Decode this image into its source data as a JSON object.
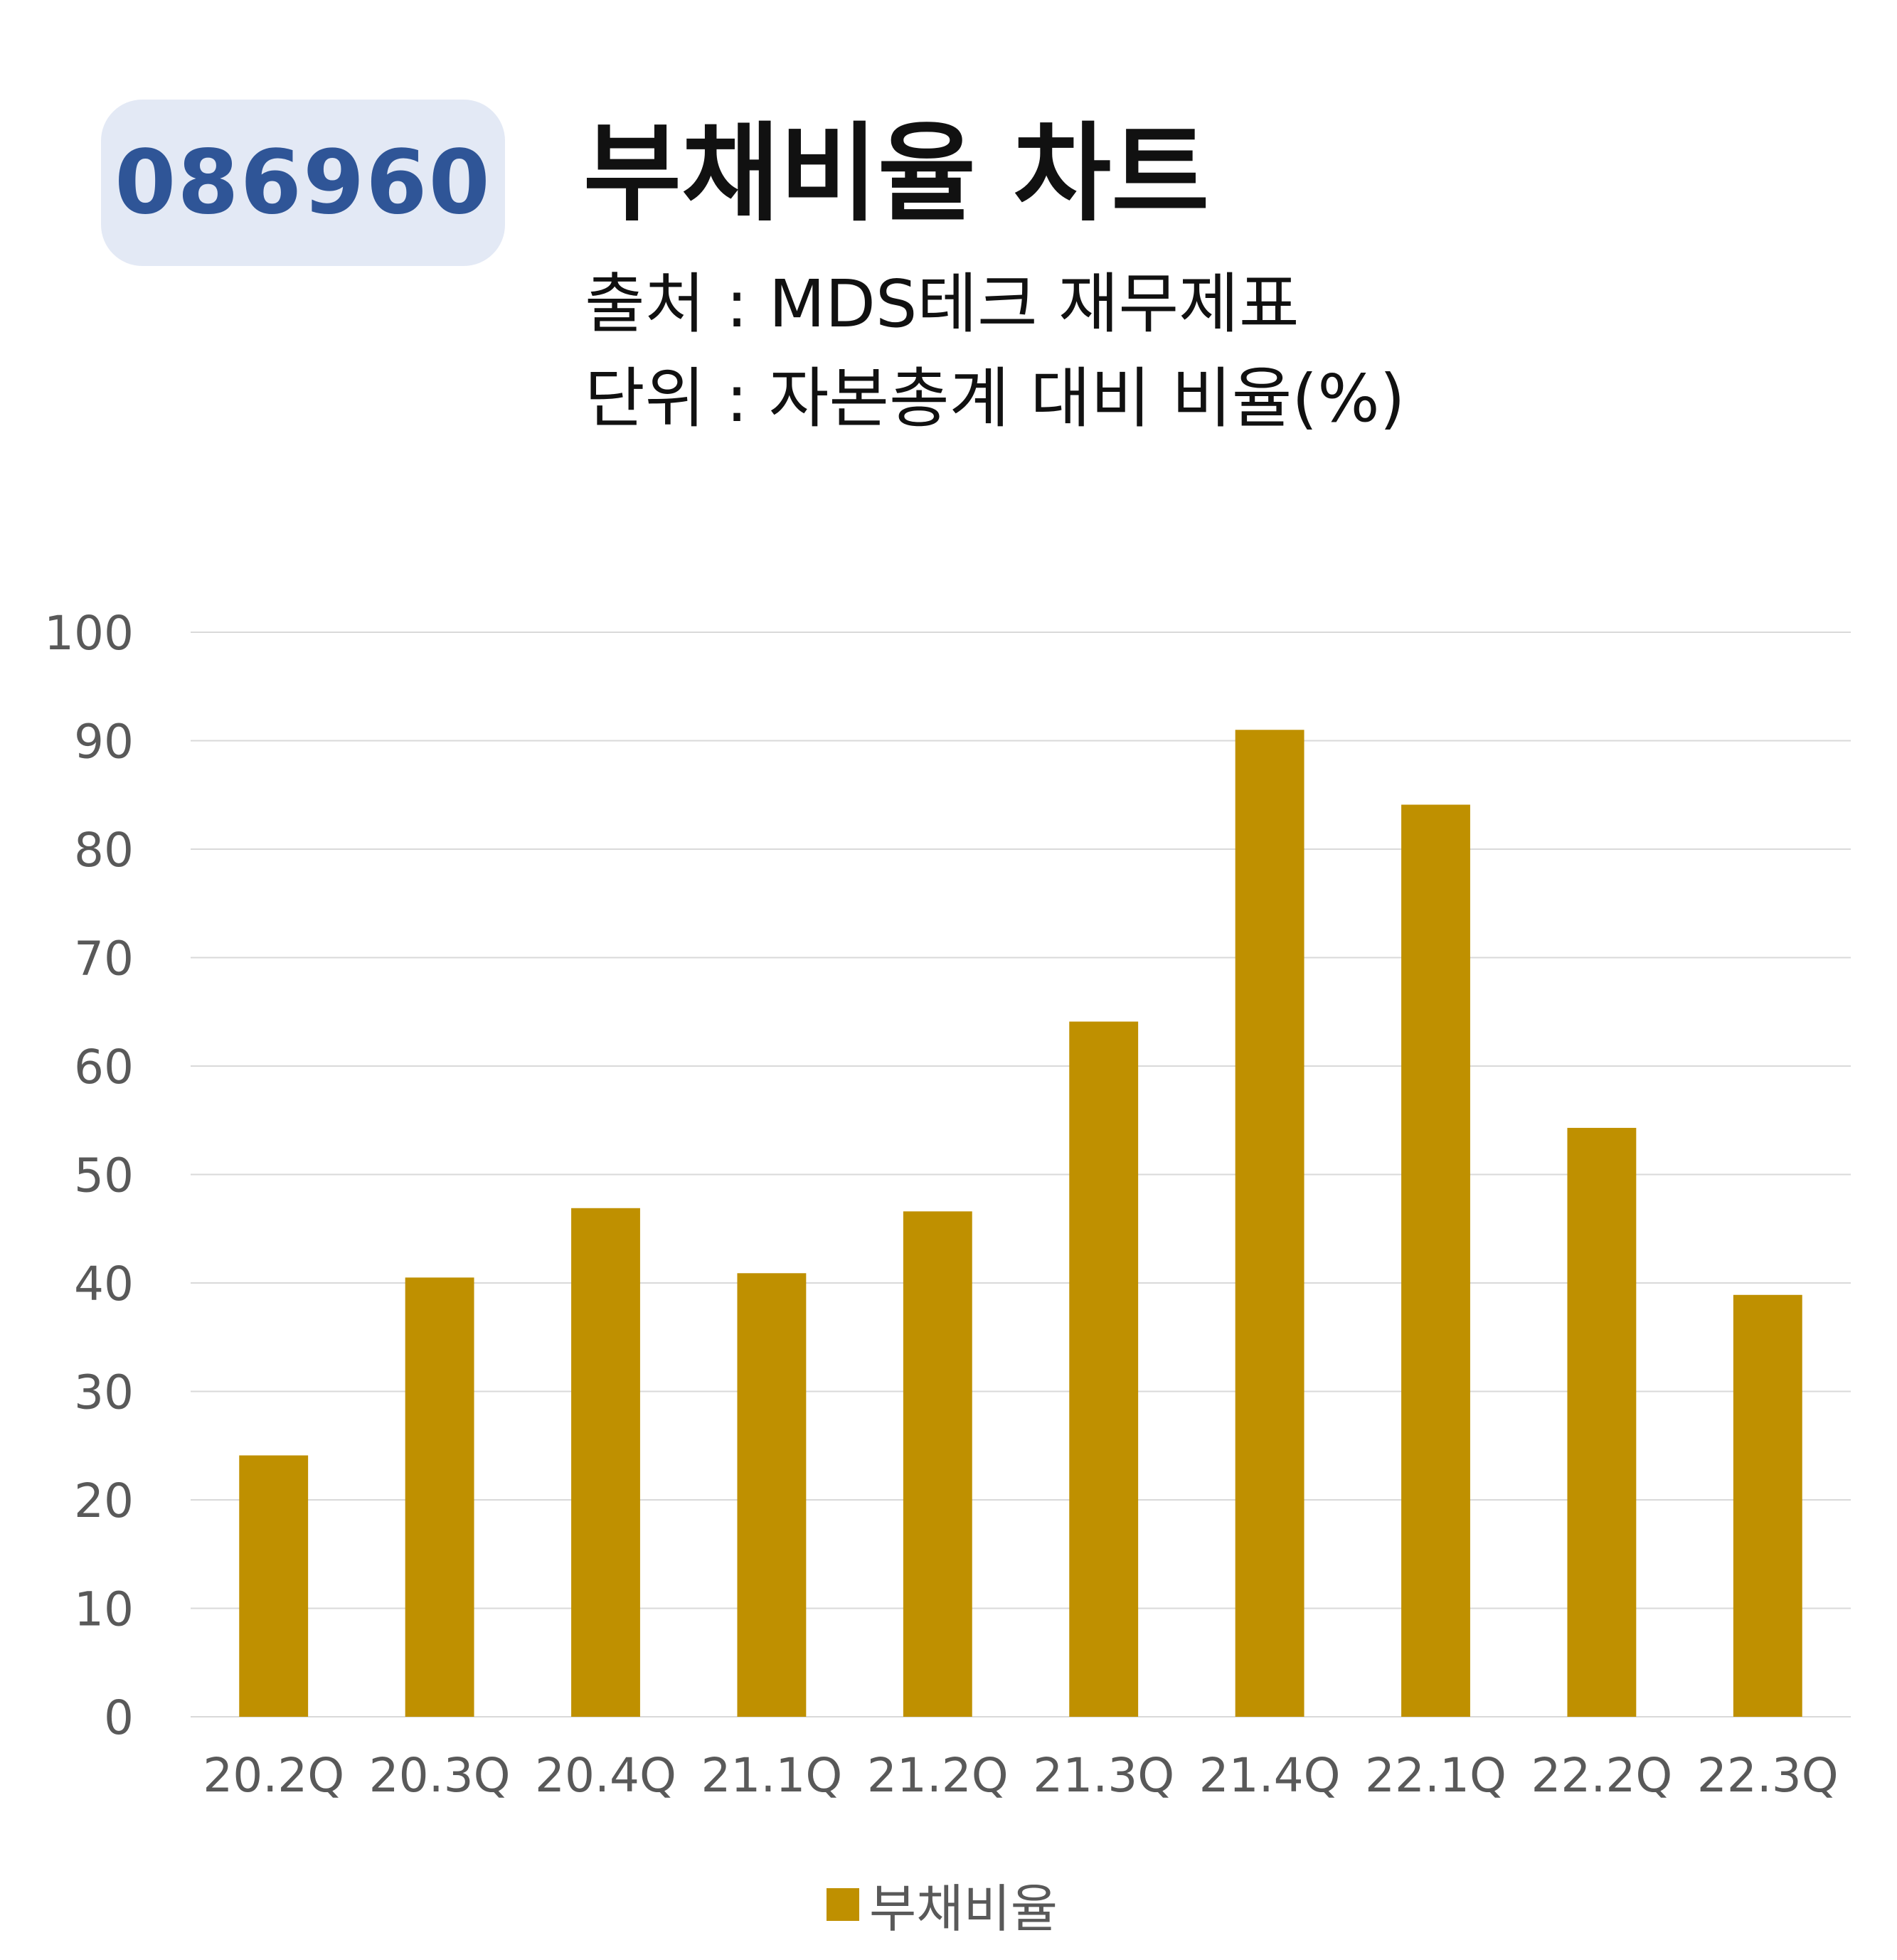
{
  "header": {
    "code": "086960",
    "title": "부채비율 차트",
    "source": "출처 : MDS테크 재무제표",
    "unit": "단위 : 자본총계 대비 비율(%)"
  },
  "chart_data": {
    "type": "bar",
    "categories": [
      "20.2Q",
      "20.3Q",
      "20.4Q",
      "21.1Q",
      "21.2Q",
      "21.3Q",
      "21.4Q",
      "22.1Q",
      "22.2Q",
      "22.3Q"
    ],
    "series": [
      {
        "name": "부채비율",
        "values": [
          24.1,
          40.5,
          46.9,
          40.9,
          46.6,
          64.1,
          91.0,
          84.1,
          54.3,
          38.9
        ]
      }
    ],
    "ylim": [
      0,
      100
    ],
    "yticks": [
      0,
      10,
      20,
      30,
      40,
      50,
      60,
      70,
      80,
      90,
      100
    ],
    "grid": true,
    "legend": "bottom-center",
    "bar_color": "#bf9000",
    "grid_color": "#d9d9d9",
    "tick_color": "#595959"
  }
}
